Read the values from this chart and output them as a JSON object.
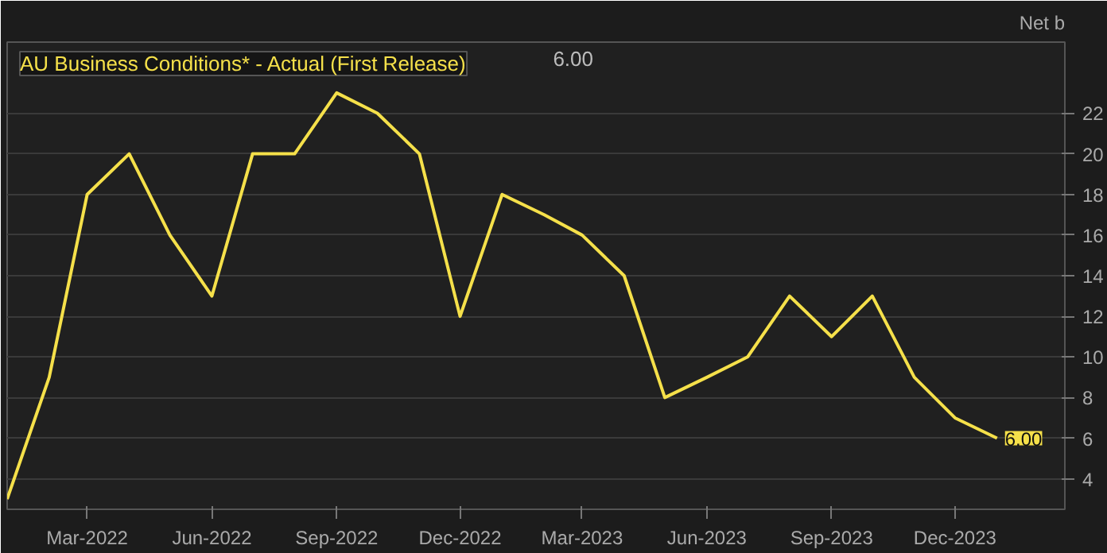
{
  "chart_data": {
    "type": "line",
    "title": "AU Business Conditions* - Actual (First Release)",
    "ylabel": "Net b",
    "annotations": [
      "6.00",
      {
        "text": "6.00",
        "x": "2024-01",
        "y": 6
      }
    ],
    "x": [
      "2022-01",
      "2022-02",
      "2022-03",
      "2022-04",
      "2022-05",
      "2022-06",
      "2022-07",
      "2022-08",
      "2022-09",
      "2022-10",
      "2022-11",
      "2022-12",
      "2023-01",
      "2023-02",
      "2023-03",
      "2023-04",
      "2023-05",
      "2023-06",
      "2023-07",
      "2023-08",
      "2023-09",
      "2023-10",
      "2023-11",
      "2023-12",
      "2024-01"
    ],
    "series": [
      {
        "color": "#f5e04a",
        "values": [
          3,
          9,
          18,
          20,
          16,
          13,
          20,
          20,
          23,
          22,
          20,
          12,
          18,
          17,
          16,
          14,
          8,
          9,
          10,
          13,
          11,
          13,
          9,
          7,
          6
        ]
      }
    ],
    "xlim": [
      "2022-01-01",
      "2024-02-20"
    ],
    "ylim": [
      2.5,
      25.5
    ],
    "xticks": [
      {
        "value": "2022-03",
        "label": "Mar-2022"
      },
      {
        "value": "2022-06",
        "label": "Jun-2022"
      },
      {
        "value": "2022-09",
        "label": "Sep-2022"
      },
      {
        "value": "2022-12",
        "label": "Dec-2022"
      },
      {
        "value": "2023-03",
        "label": "Mar-2023"
      },
      {
        "value": "2023-06",
        "label": "Jun-2023"
      },
      {
        "value": "2023-09",
        "label": "Sep-2023"
      },
      {
        "value": "2023-12",
        "label": "Dec-2023"
      }
    ],
    "yticks": [
      4,
      6,
      8,
      10,
      12,
      14,
      16,
      18,
      20,
      22
    ],
    "grid": "y",
    "marker": "none",
    "line_style": "solid"
  }
}
